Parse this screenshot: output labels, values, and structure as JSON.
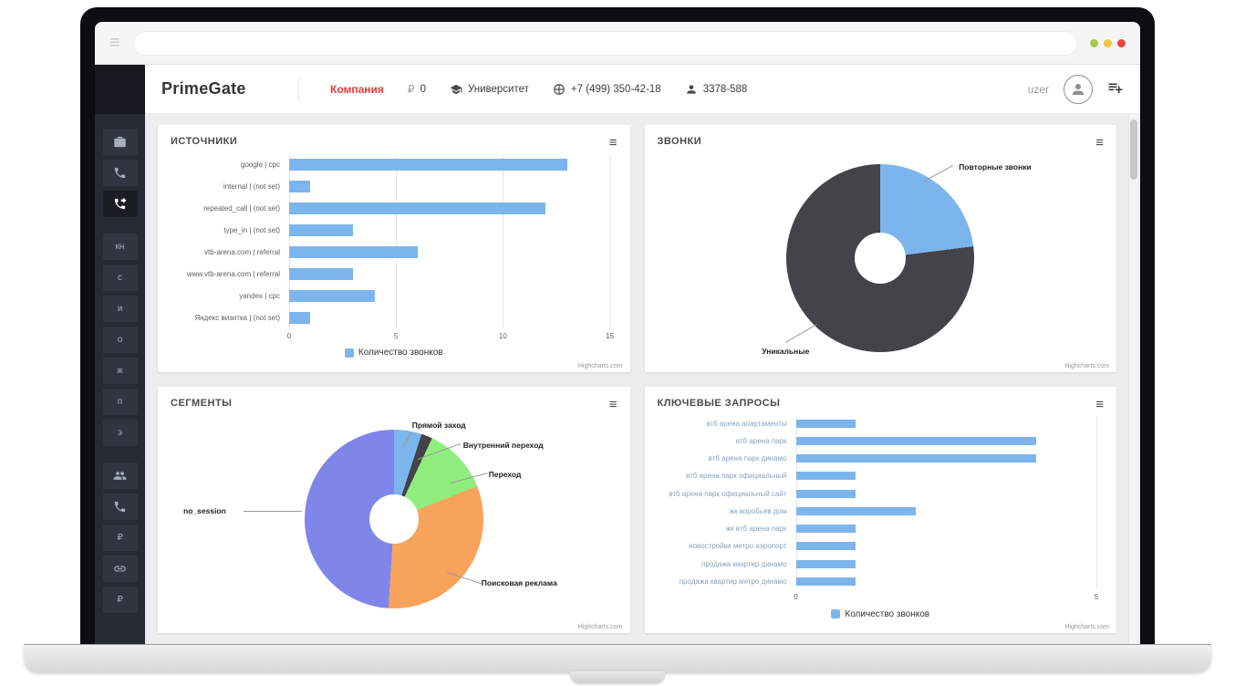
{
  "icons": {
    "hamburger": "≡",
    "ruble": "₽"
  },
  "header": {
    "logo": "PrimeGate",
    "company": "Компания",
    "balance_currency": "₽",
    "balance_value": "0",
    "university": "Университет",
    "phone": "+7 (499) 350-42-18",
    "account": "3378-588",
    "username": "uzer"
  },
  "sidebar": {
    "letters": [
      "кн",
      "с",
      "и",
      "о",
      "ж",
      "п",
      "э"
    ]
  },
  "chart_data": [
    {
      "id": "sources",
      "type": "bar",
      "title": "ИСТОЧНИКИ",
      "categories": [
        "google | cpc",
        "internal | (not set)",
        "repeated_call | (not set)",
        "type_in | (not set)",
        "vtb-arena.com | referral",
        "www.vtb-arena.com | referral",
        "yandex | cpc",
        "Яндекс визитка | (not set)"
      ],
      "values": [
        13,
        1,
        12,
        3,
        6,
        3,
        4,
        1
      ],
      "xlim": [
        0,
        15
      ],
      "ticks": [
        0,
        5,
        10,
        15
      ],
      "legend": "Количество звонков",
      "color": "#7cb5ec",
      "credit": "Highcharts.com"
    },
    {
      "id": "calls",
      "type": "pie",
      "title": "ЗВОНКИ",
      "slices": [
        {
          "label": "Повторные звонки",
          "value": 23,
          "color": "#7cb5ec"
        },
        {
          "label": "Уникальные",
          "value": 77,
          "color": "#434348"
        }
      ],
      "credit": "Highcharts.com"
    },
    {
      "id": "segments",
      "type": "pie",
      "title": "СЕГМЕНТЫ",
      "slices": [
        {
          "label": "Прямой заход",
          "value": 5,
          "color": "#7cb5ec"
        },
        {
          "label": "Внутренний переход",
          "value": 2,
          "color": "#434348"
        },
        {
          "label": "Переход",
          "value": 12,
          "color": "#90ed7d"
        },
        {
          "label": "Поисковая реклама",
          "value": 32,
          "color": "#f7a35c"
        },
        {
          "label": "no_session",
          "value": 49,
          "color": "#8085e9"
        }
      ],
      "credit": "Highcharts.com"
    },
    {
      "id": "keywords",
      "type": "bar",
      "title": "КЛЮЧЕВЫЕ ЗАПРОСЫ",
      "categories": [
        "втб арена апартаменты",
        "втб арена парк",
        "втб арена парк динамо",
        "втб арена парк официальный",
        "втб арена парк официальный сайт",
        "жк воробьев дом",
        "жк втб арена парк",
        "новостройки метро аэропорт",
        "продажа квартир динамо",
        "продажа квартир метро динамо"
      ],
      "values": [
        1,
        4,
        4,
        1,
        1,
        2,
        1,
        1,
        1,
        1
      ],
      "xlim": [
        0,
        5
      ],
      "ticks": [
        0,
        5
      ],
      "legend": "Количество звонков",
      "color": "#7cb5ec",
      "credit": "Highcharts.com"
    }
  ]
}
